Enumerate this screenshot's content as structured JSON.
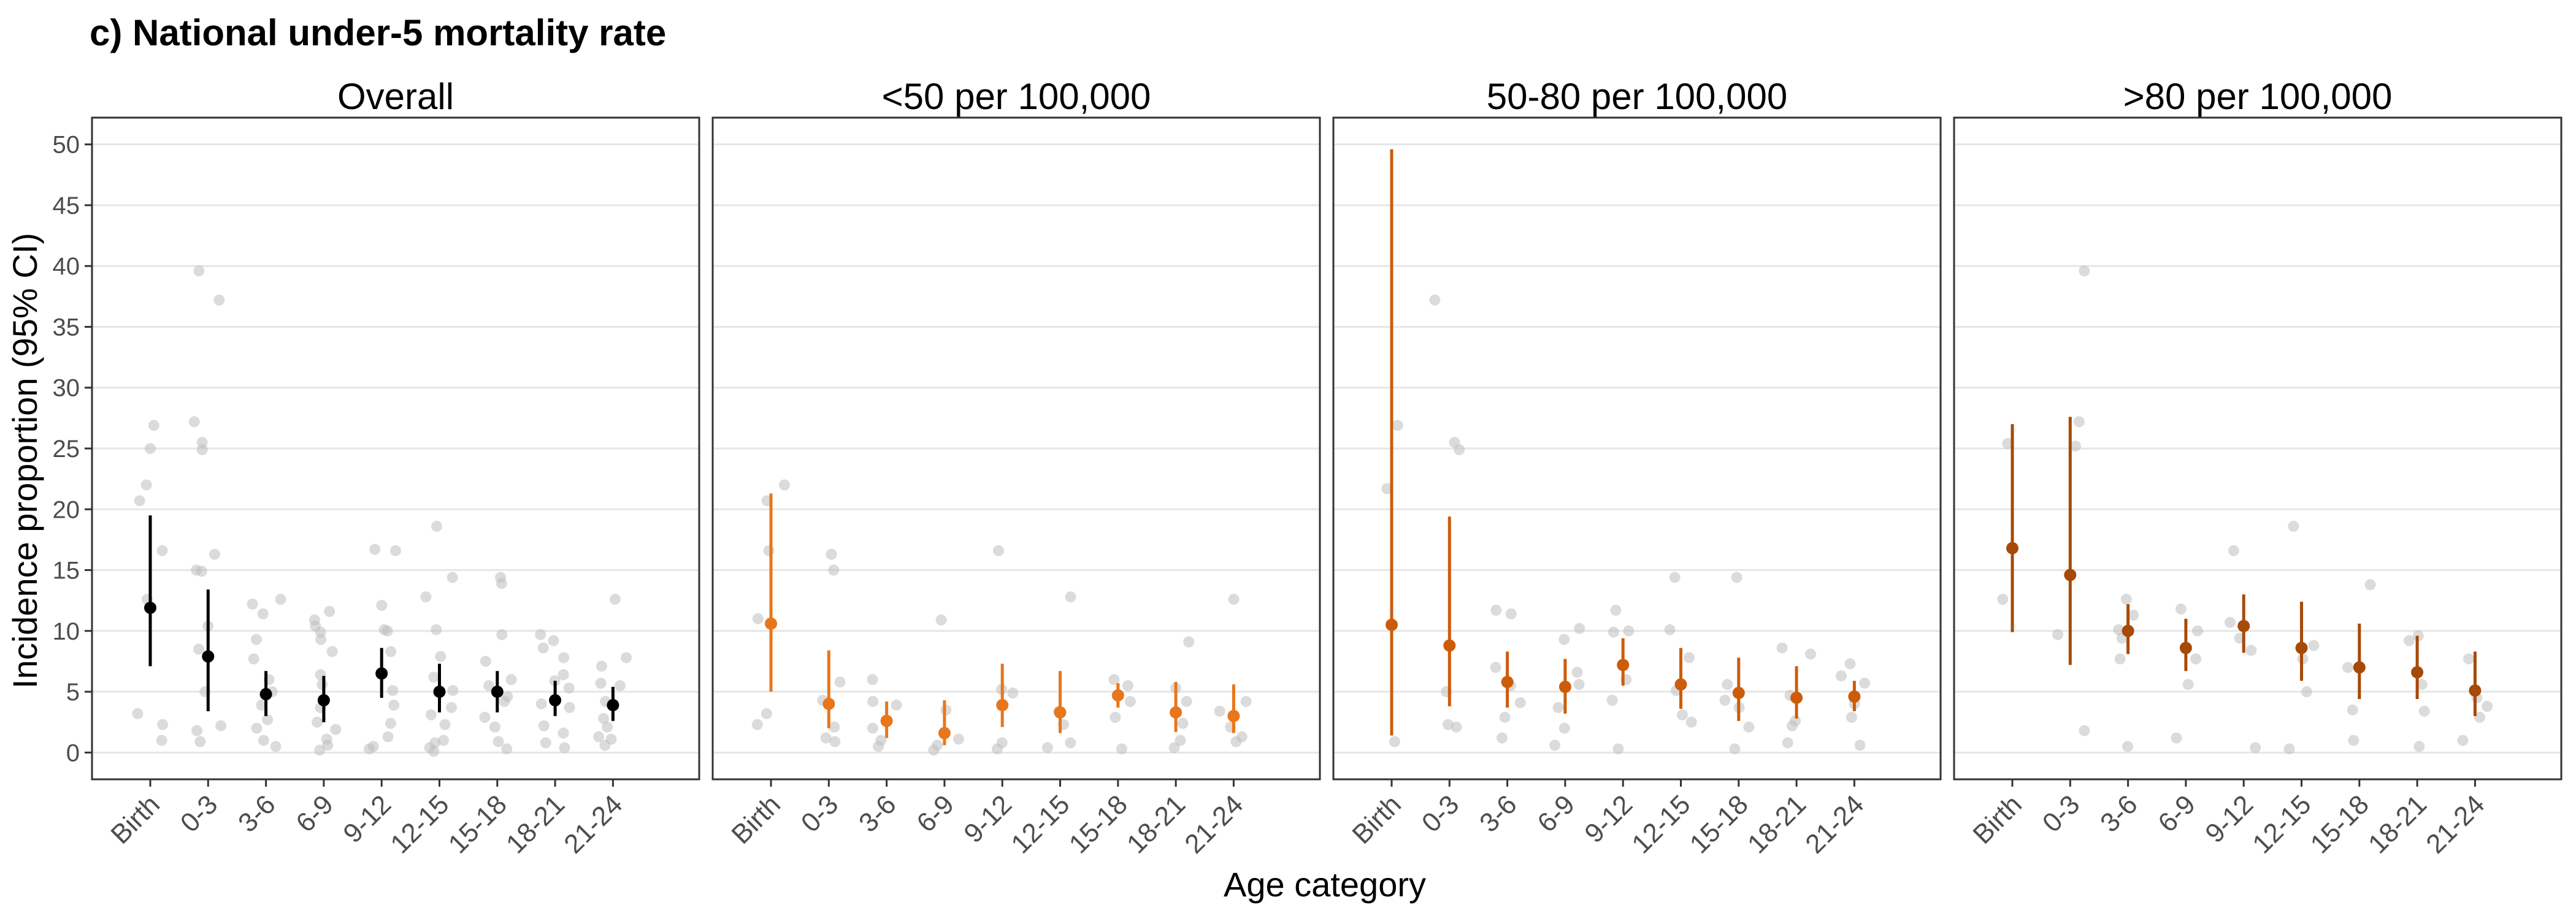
{
  "title": "c) National under-5 mortality rate",
  "chart_data": {
    "type": "scatter",
    "xlabel": "Age category",
    "ylabel": "Incidence proportion (95% CI)",
    "ylim": [
      -2.2,
      52.2
    ],
    "yticks": [
      0,
      5,
      10,
      15,
      20,
      25,
      30,
      35,
      40,
      45,
      50
    ],
    "categories": [
      "Birth",
      "0-3",
      "3-6",
      "6-9",
      "9-12",
      "12-15",
      "15-18",
      "18-21",
      "21-24"
    ],
    "grid": true,
    "colors": {
      "Overall": "#000000",
      "<50 per 100,000": "#e8761b",
      "50-80 per 100,000": "#cc5c0a",
      ">80 per 100,000": "#a64a08",
      "raw_points": "#bdbdbd",
      "panel_border": "#333333",
      "gridline": "#e6e6e6"
    },
    "panels": [
      {
        "name": "Overall",
        "estimates": [
          11.9,
          7.9,
          4.8,
          4.3,
          6.5,
          5.0,
          5.0,
          4.3,
          3.9
        ],
        "lower": [
          7.1,
          3.4,
          3.0,
          2.5,
          4.5,
          3.3,
          3.3,
          3.0,
          2.6
        ],
        "upper": [
          19.5,
          13.4,
          6.7,
          6.3,
          8.6,
          7.3,
          6.7,
          5.9,
          5.4
        ],
        "raw": [
          [
            1.0,
            2.3,
            3.2,
            12.6,
            16.6,
            20.7,
            22.0,
            25.0,
            26.9
          ],
          [
            0.9,
            1.8,
            2.2,
            5.0,
            8.5,
            10.4,
            14.9,
            15.0,
            16.3,
            24.9,
            25.5,
            27.2,
            37.2,
            39.6
          ],
          [
            0.5,
            1.0,
            2.0,
            2.7,
            3.9,
            5.0,
            6.0,
            7.7,
            9.3,
            11.4,
            12.2,
            12.6
          ],
          [
            0.2,
            0.6,
            1.1,
            1.9,
            2.5,
            3.7,
            5.6,
            6.4,
            8.3,
            9.3,
            9.9,
            10.4,
            10.9,
            11.6
          ],
          [
            0.3,
            0.5,
            1.3,
            2.4,
            3.9,
            5.1,
            8.3,
            10.0,
            10.1,
            12.1,
            16.6,
            16.7
          ],
          [
            0.1,
            0.4,
            0.8,
            1.0,
            2.3,
            3.1,
            3.7,
            5.1,
            6.2,
            7.9,
            10.1,
            12.8,
            14.4,
            18.6
          ],
          [
            0.3,
            0.9,
            2.1,
            2.9,
            4.2,
            4.6,
            5.5,
            6.0,
            7.5,
            9.7,
            13.9,
            14.4
          ],
          [
            0.4,
            0.8,
            1.6,
            2.2,
            3.7,
            4.0,
            5.3,
            5.9,
            6.4,
            7.8,
            8.6,
            9.2,
            9.7
          ],
          [
            0.6,
            1.1,
            1.3,
            2.1,
            2.8,
            4.2,
            5.5,
            5.7,
            7.1,
            7.8,
            12.6
          ]
        ]
      },
      {
        "name": "<50 per 100,000",
        "estimates": [
          10.6,
          4.0,
          2.6,
          1.6,
          3.9,
          3.3,
          4.7,
          3.3,
          3.0
        ],
        "lower": [
          5.0,
          2.0,
          1.2,
          0.6,
          2.1,
          1.6,
          3.7,
          1.7,
          1.6
        ],
        "upper": [
          21.3,
          8.4,
          4.2,
          4.3,
          7.3,
          6.7,
          5.7,
          5.8,
          5.6
        ],
        "raw": [
          [
            2.3,
            3.2,
            11.0,
            16.6,
            20.7,
            22.0
          ],
          [
            0.9,
            1.2,
            2.1,
            4.3,
            5.8,
            15.0,
            16.3
          ],
          [
            0.5,
            1.0,
            2.0,
            3.9,
            4.2,
            6.0
          ],
          [
            0.2,
            0.6,
            1.1,
            3.5,
            10.9
          ],
          [
            0.3,
            0.8,
            4.9,
            5.2,
            16.6
          ],
          [
            0.4,
            0.8,
            2.3,
            3.4,
            12.8
          ],
          [
            0.3,
            2.9,
            4.2,
            5.5,
            6.0
          ],
          [
            0.4,
            1.0,
            2.4,
            4.2,
            5.3,
            9.1
          ],
          [
            0.9,
            1.3,
            2.1,
            3.4,
            4.2,
            12.6
          ]
        ]
      },
      {
        "name": "50-80 per 100,000",
        "estimates": [
          10.5,
          8.8,
          5.8,
          5.4,
          7.2,
          5.6,
          4.9,
          4.5,
          4.6
        ],
        "lower": [
          1.4,
          3.8,
          3.7,
          3.2,
          5.5,
          3.6,
          2.6,
          2.8,
          3.4
        ],
        "upper": [
          49.6,
          19.4,
          8.3,
          7.7,
          9.4,
          8.6,
          7.8,
          7.1,
          5.9
        ],
        "raw": [
          [
            0.9,
            21.7,
            26.9
          ],
          [
            2.1,
            2.3,
            5.0,
            24.9,
            25.5,
            37.2
          ],
          [
            1.2,
            2.9,
            4.1,
            5.5,
            7.0,
            11.4,
            11.7
          ],
          [
            0.6,
            2.0,
            3.7,
            5.6,
            6.6,
            9.3,
            10.2
          ],
          [
            0.3,
            4.3,
            6.0,
            9.9,
            10.0,
            11.7
          ],
          [
            2.5,
            3.1,
            5.1,
            7.8,
            10.1,
            14.4
          ],
          [
            0.3,
            2.1,
            3.7,
            4.3,
            5.6,
            14.4
          ],
          [
            0.8,
            2.2,
            2.6,
            4.7,
            8.1,
            8.6
          ],
          [
            0.6,
            2.9,
            4.0,
            5.7,
            6.3,
            7.3
          ]
        ]
      },
      {
        "name": ">80 per 100,000",
        "estimates": [
          16.8,
          14.6,
          10.0,
          8.6,
          10.4,
          8.6,
          7.0,
          6.6,
          5.1
        ],
        "lower": [
          9.9,
          7.2,
          8.1,
          6.7,
          8.2,
          5.9,
          4.4,
          4.4,
          3.0
        ],
        "upper": [
          27.0,
          27.6,
          12.2,
          11.0,
          13.0,
          12.4,
          10.6,
          9.6,
          8.3
        ],
        "raw": [
          [
            12.6,
            25.4
          ],
          [
            1.8,
            9.7,
            25.2,
            27.2,
            39.6
          ],
          [
            0.5,
            7.7,
            9.4,
            10.1,
            11.3,
            12.6
          ],
          [
            1.2,
            5.6,
            7.7,
            10.0,
            11.8
          ],
          [
            0.4,
            8.4,
            9.4,
            10.7,
            16.6
          ],
          [
            0.3,
            5.0,
            7.7,
            8.8,
            18.6
          ],
          [
            1.0,
            3.5,
            7.0,
            13.8
          ],
          [
            0.5,
            3.4,
            5.6,
            9.2,
            9.6
          ],
          [
            1.0,
            2.9,
            3.8,
            4.5,
            7.7
          ]
        ]
      }
    ]
  }
}
